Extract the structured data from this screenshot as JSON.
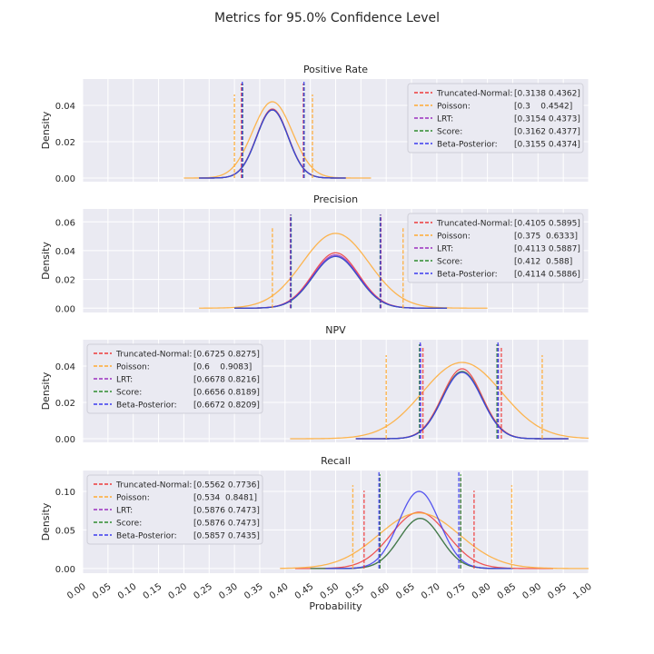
{
  "figure_title": "Metrics for 95.0% Confidence Level",
  "colors": {
    "Truncated-Normal": "#ee3b3b",
    "Poisson": "#ffaa33",
    "LRT": "#9b30c0",
    "Score": "#2e8b2e",
    "Beta-Posterior": "#3b3bee"
  },
  "chart_data": [
    {
      "type": "line",
      "title": "Positive Rate",
      "ylabel": "Density",
      "xlabel": "",
      "xlim": [
        0,
        1
      ],
      "ylim": [
        -0.002,
        0.0545
      ],
      "yticks": [
        "0.00",
        "0.02",
        "0.04"
      ],
      "yticks_values": [
        0,
        0.02,
        0.04
      ],
      "grid": true,
      "legend_position": "top-right",
      "legend": [
        {
          "name": "Truncated-Normal:",
          "interval": "[0.3138 0.4362]"
        },
        {
          "name": "Poisson:",
          "interval": "[0.3    0.4542]"
        },
        {
          "name": "LRT:",
          "interval": "[0.3154 0.4373]"
        },
        {
          "name": "Score:",
          "interval": "[0.3162 0.4377]"
        },
        {
          "name": "Beta-Posterior:",
          "interval": "[0.3155 0.4374]"
        }
      ],
      "series": [
        {
          "name": "Truncated-Normal",
          "center": 0.375,
          "peak": 0.038,
          "range": [
            0.23,
            0.52
          ],
          "ci": [
            0.3138,
            0.4362
          ],
          "ci_height": 0.052
        },
        {
          "name": "Poisson",
          "center": 0.375,
          "peak": 0.042,
          "range": [
            0.2,
            0.57
          ],
          "ci": [
            0.3,
            0.4542
          ],
          "ci_height": 0.046
        },
        {
          "name": "LRT",
          "center": 0.375,
          "peak": 0.0375,
          "range": [
            0.23,
            0.52
          ],
          "ci": [
            0.3154,
            0.4373
          ],
          "ci_height": 0.052
        },
        {
          "name": "Score",
          "center": 0.375,
          "peak": 0.0375,
          "range": [
            0.23,
            0.52
          ],
          "ci": [
            0.3162,
            0.4377
          ],
          "ci_height": 0.052
        },
        {
          "name": "Beta-Posterior",
          "center": 0.375,
          "peak": 0.0375,
          "range": [
            0.23,
            0.52
          ],
          "ci": [
            0.3155,
            0.4374
          ],
          "ci_height": 0.053
        }
      ]
    },
    {
      "type": "line",
      "title": "Precision",
      "ylabel": "Density",
      "xlabel": "",
      "xlim": [
        0,
        1
      ],
      "ylim": [
        -0.003,
        0.069
      ],
      "yticks": [
        "0.00",
        "0.02",
        "0.04",
        "0.06"
      ],
      "yticks_values": [
        0,
        0.02,
        0.04,
        0.06
      ],
      "grid": true,
      "legend_position": "top-right",
      "legend": [
        {
          "name": "Truncated-Normal:",
          "interval": "[0.4105 0.5895]"
        },
        {
          "name": "Poisson:",
          "interval": "[0.375  0.6333]"
        },
        {
          "name": "LRT:",
          "interval": "[0.4113 0.5887]"
        },
        {
          "name": "Score:",
          "interval": "[0.412  0.588]"
        },
        {
          "name": "Beta-Posterior:",
          "interval": "[0.4114 0.5886]"
        }
      ],
      "series": [
        {
          "name": "Truncated-Normal",
          "center": 0.5,
          "peak": 0.0385,
          "range": [
            0.3,
            0.72
          ],
          "ci": [
            0.4105,
            0.5895
          ],
          "ci_height": 0.065
        },
        {
          "name": "Poisson",
          "center": 0.5,
          "peak": 0.052,
          "range": [
            0.23,
            0.8
          ],
          "ci": [
            0.375,
            0.6333
          ],
          "ci_height": 0.056
        },
        {
          "name": "LRT",
          "center": 0.5,
          "peak": 0.037,
          "range": [
            0.3,
            0.72
          ],
          "ci": [
            0.4113,
            0.5887
          ],
          "ci_height": 0.065
        },
        {
          "name": "Score",
          "center": 0.5,
          "peak": 0.036,
          "range": [
            0.3,
            0.72
          ],
          "ci": [
            0.412,
            0.588
          ],
          "ci_height": 0.065
        },
        {
          "name": "Beta-Posterior",
          "center": 0.5,
          "peak": 0.036,
          "range": [
            0.3,
            0.72
          ],
          "ci": [
            0.4114,
            0.5886
          ],
          "ci_height": 0.065
        }
      ]
    },
    {
      "type": "line",
      "title": "NPV",
      "ylabel": "Density",
      "xlabel": "",
      "xlim": [
        0,
        1
      ],
      "ylim": [
        -0.002,
        0.0545
      ],
      "yticks": [
        "0.00",
        "0.02",
        "0.04"
      ],
      "yticks_values": [
        0,
        0.02,
        0.04
      ],
      "grid": true,
      "legend_position": "top-left",
      "legend": [
        {
          "name": "Truncated-Normal:",
          "interval": "[0.6725 0.8275]"
        },
        {
          "name": "Poisson:",
          "interval": "[0.6    0.9083]"
        },
        {
          "name": "LRT:",
          "interval": "[0.6678 0.8216]"
        },
        {
          "name": "Score:",
          "interval": "[0.6656 0.8189]"
        },
        {
          "name": "Beta-Posterior:",
          "interval": "[0.6672 0.8209]"
        }
      ],
      "series": [
        {
          "name": "Truncated-Normal",
          "center": 0.75,
          "peak": 0.0385,
          "range": [
            0.54,
            0.96
          ],
          "ci": [
            0.6725,
            0.8275
          ],
          "ci_height": 0.051
        },
        {
          "name": "Poisson",
          "center": 0.75,
          "peak": 0.042,
          "range": [
            0.41,
            1.0
          ],
          "ci": [
            0.6,
            0.9083
          ],
          "ci_height": 0.046
        },
        {
          "name": "LRT",
          "center": 0.75,
          "peak": 0.037,
          "range": [
            0.54,
            0.96
          ],
          "ci": [
            0.6678,
            0.8216
          ],
          "ci_height": 0.052
        },
        {
          "name": "Score",
          "center": 0.75,
          "peak": 0.037,
          "range": [
            0.54,
            0.96
          ],
          "ci": [
            0.6656,
            0.8189
          ],
          "ci_height": 0.052
        },
        {
          "name": "Beta-Posterior",
          "center": 0.75,
          "peak": 0.0365,
          "range": [
            0.54,
            0.96
          ],
          "ci": [
            0.6672,
            0.8209
          ],
          "ci_height": 0.053
        }
      ]
    },
    {
      "type": "line",
      "title": "Recall",
      "ylabel": "Density",
      "xlabel": "Probability",
      "xlim": [
        0,
        1
      ],
      "ylim": [
        -0.006,
        0.127
      ],
      "yticks": [
        "0.00",
        "0.05",
        "0.10"
      ],
      "yticks_values": [
        0,
        0.05,
        0.1
      ],
      "grid": true,
      "legend_position": "top-left",
      "xticks": [
        "0.00",
        "0.05",
        "0.10",
        "0.15",
        "0.20",
        "0.25",
        "0.30",
        "0.35",
        "0.40",
        "0.45",
        "0.50",
        "0.55",
        "0.60",
        "0.65",
        "0.70",
        "0.75",
        "0.80",
        "0.85",
        "0.90",
        "0.95",
        "1.00"
      ],
      "legend": [
        {
          "name": "Truncated-Normal:",
          "interval": "[0.5562 0.7736]"
        },
        {
          "name": "Poisson:",
          "interval": "[0.534  0.8481]"
        },
        {
          "name": "LRT:",
          "interval": "[0.5876 0.7473]"
        },
        {
          "name": "Score:",
          "interval": "[0.5876 0.7473]"
        },
        {
          "name": "Beta-Posterior:",
          "interval": "[0.5857 0.7435]"
        }
      ],
      "series": [
        {
          "name": "Truncated-Normal",
          "center": 0.665,
          "peak": 0.073,
          "range": [
            0.42,
            0.93
          ],
          "ci": [
            0.5562,
            0.7736
          ],
          "ci_height": 0.101
        },
        {
          "name": "Poisson",
          "center": 0.665,
          "peak": 0.072,
          "range": [
            0.39,
            1.0
          ],
          "ci": [
            0.534,
            0.8481
          ],
          "ci_height": 0.108
        },
        {
          "name": "LRT",
          "center": 0.667,
          "peak": 0.065,
          "range": [
            0.45,
            0.85
          ],
          "ci": [
            0.5876,
            0.7473
          ],
          "ci_height": 0.12
        },
        {
          "name": "Score",
          "center": 0.667,
          "peak": 0.065,
          "range": [
            0.45,
            0.85
          ],
          "ci": [
            0.5876,
            0.7473
          ],
          "ci_height": 0.122
        },
        {
          "name": "Beta-Posterior",
          "center": 0.665,
          "peak": 0.1,
          "range": [
            0.48,
            0.85
          ],
          "ci": [
            0.5857,
            0.7435
          ],
          "ci_height": 0.125
        }
      ]
    }
  ]
}
